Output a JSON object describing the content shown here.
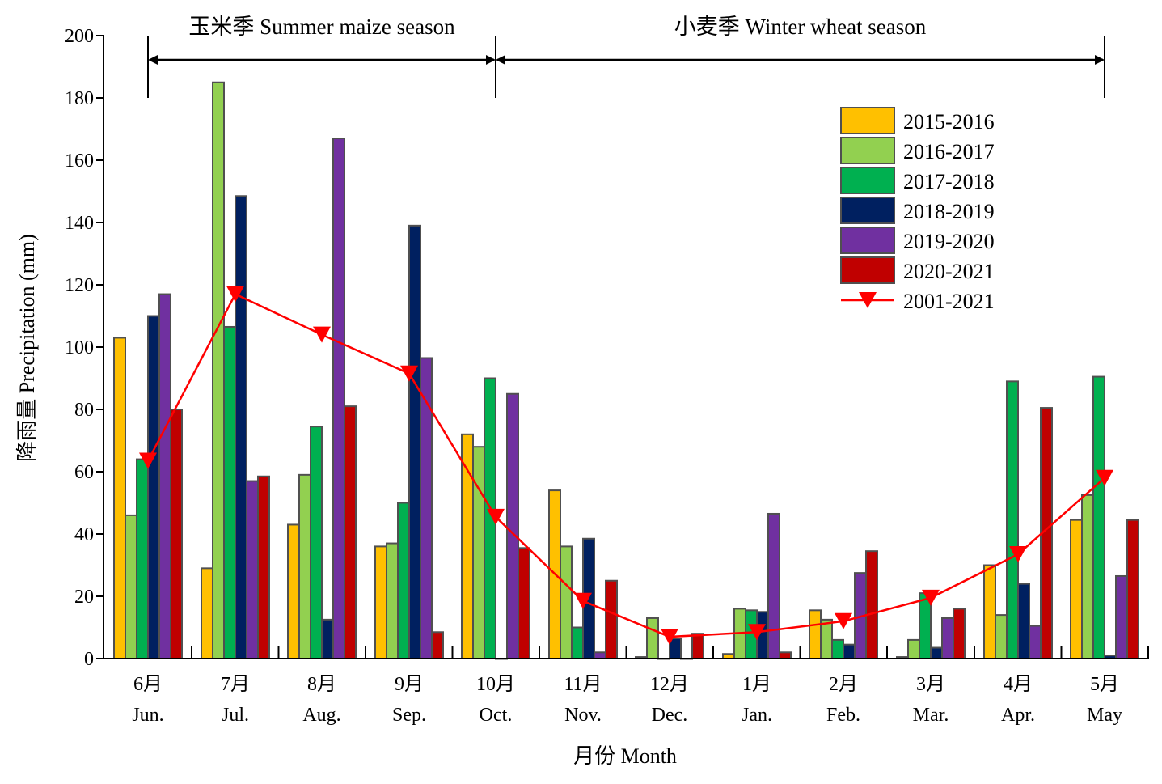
{
  "chart_data": {
    "type": "bar",
    "xlabel": "月份 Month",
    "ylabel": "降雨量 Precipitation (mm)",
    "ylim": [
      0,
      200
    ],
    "yticks": [
      0,
      20,
      40,
      60,
      80,
      100,
      120,
      140,
      160,
      180,
      200
    ],
    "categories": [
      {
        "cn": "6月",
        "en": "Jun."
      },
      {
        "cn": "7月",
        "en": "Jul."
      },
      {
        "cn": "8月",
        "en": "Aug."
      },
      {
        "cn": "9月",
        "en": "Sep."
      },
      {
        "cn": "10月",
        "en": "Oct."
      },
      {
        "cn": "11月",
        "en": "Nov."
      },
      {
        "cn": "12月",
        "en": "Dec."
      },
      {
        "cn": "1月",
        "en": "Jan."
      },
      {
        "cn": "2月",
        "en": "Feb."
      },
      {
        "cn": "3月",
        "en": "Mar."
      },
      {
        "cn": "4月",
        "en": "Apr."
      },
      {
        "cn": "5月",
        "en": "May"
      }
    ],
    "series": [
      {
        "name": "2015-2016",
        "color": "#FFC000",
        "values": [
          103,
          29,
          43,
          36,
          72,
          54,
          0.5,
          1.5,
          15.5,
          0.5,
          30,
          44.5
        ]
      },
      {
        "name": "2016-2017",
        "color": "#92D050",
        "values": [
          46,
          185,
          59,
          37,
          68,
          36,
          13,
          16,
          12.5,
          6,
          14,
          52.5
        ]
      },
      {
        "name": "2017-2018",
        "color": "#00B050",
        "values": [
          64,
          106.5,
          74.5,
          50,
          90,
          10,
          0,
          15.5,
          6,
          21,
          89,
          90.5
        ]
      },
      {
        "name": "2018-2019",
        "color": "#002060",
        "values": [
          110,
          148.5,
          12.5,
          139,
          0,
          38.5,
          6.5,
          15,
          4.5,
          3.5,
          24,
          1
        ]
      },
      {
        "name": "2019-2020",
        "color": "#7030A0",
        "values": [
          117,
          57,
          167,
          96.5,
          85,
          2,
          0,
          46.5,
          27.5,
          13,
          10.5,
          26.5
        ]
      },
      {
        "name": "2020-2021",
        "color": "#C00000",
        "values": [
          80,
          58.5,
          81,
          8.5,
          35.5,
          25,
          8,
          2,
          34.5,
          16,
          80.5,
          44.5
        ]
      }
    ],
    "line_series": {
      "name": "2001-2021",
      "color": "#FF0000",
      "marker": "down-triangle",
      "values": [
        63.5,
        117,
        104,
        91.5,
        45.5,
        18.5,
        7,
        8.5,
        12,
        19.5,
        33.5,
        58
      ]
    },
    "seasons": [
      {
        "label": "玉米季 Summer maize season",
        "from": "Jun.",
        "to": "Sep."
      },
      {
        "label": "小麦季 Winter wheat season",
        "from": "Oct.",
        "to": "May"
      }
    ],
    "legend_position": "top-right",
    "grid": false
  }
}
